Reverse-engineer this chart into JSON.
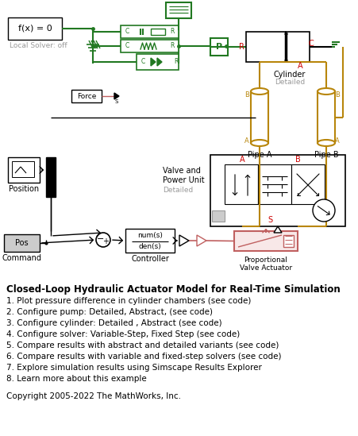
{
  "bg_color": "#ffffff",
  "title": "Closed-Loop Hydraulic Actuator Model for Real-Time Simulation",
  "title_fontsize": 8.5,
  "items": [
    "1. Plot pressure difference in cylinder chambers (see code)",
    "2. Configure pump: Detailed, Abstract, (see code)",
    "3. Configure cylinder: Detailed , Abstract (see code)",
    "4. Configure solver: Variable-Step, Fixed Step (see code)",
    "5. Compare results with abstract and detailed variants (see code)",
    "6. Compare results with variable and fixed-step solvers (see code)",
    "7. Explore simulation results using Simscape Results Explorer",
    "8. Learn more about this example"
  ],
  "copyright": "Copyright 2005-2022 The MathWorks, Inc.",
  "item_fontsize": 7.5,
  "copyright_fontsize": 7.5,
  "green": "#217821",
  "red": "#cc0000",
  "tan": "#b8860b",
  "pink": "#c06060",
  "black": "#000000",
  "gray": "#999999",
  "light_gray": "#cccccc",
  "dark_gray": "#555555"
}
